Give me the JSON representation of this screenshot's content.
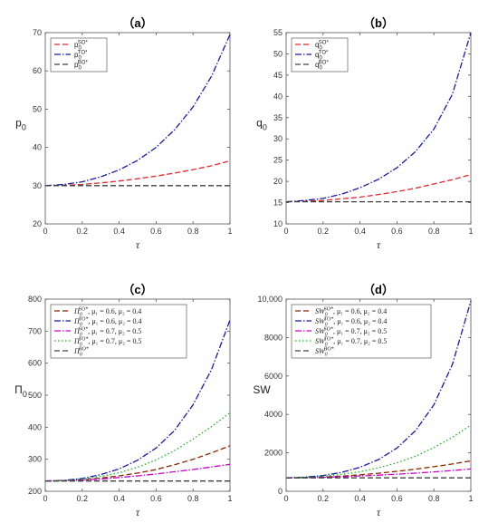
{
  "chart_data": [
    {
      "type": "line",
      "title": "（a）",
      "xlabel": "τ",
      "ylabel": "p",
      "ylabel_sub": "0",
      "xlim": [
        0,
        1
      ],
      "ylim": [
        20,
        70
      ],
      "xticks": [
        "0",
        "0.2",
        "0.4",
        "0.6",
        "0.8",
        "1"
      ],
      "yticks": [
        "20",
        "30",
        "40",
        "50",
        "60",
        "70"
      ],
      "legend_position": "top-left",
      "series": [
        {
          "name": "p",
          "sub": "0",
          "sup": "SO*",
          "color": "#e8242c",
          "dash": "6,3",
          "x": [
            0,
            0.1,
            0.2,
            0.3,
            0.4,
            0.5,
            0.6,
            0.7,
            0.8,
            0.9,
            1.0
          ],
          "y": [
            30,
            30.1,
            30.3,
            30.7,
            31.2,
            31.8,
            32.5,
            33.3,
            34.2,
            35.2,
            36.5
          ]
        },
        {
          "name": "p",
          "sub": "0",
          "sup": "TO*",
          "color": "#1a1aa8",
          "dash": "7,2,1.5,2",
          "x": [
            0,
            0.1,
            0.2,
            0.3,
            0.4,
            0.5,
            0.6,
            0.7,
            0.8,
            0.9,
            1.0
          ],
          "y": [
            30,
            30.3,
            31,
            32.3,
            34.1,
            36.6,
            40,
            44.6,
            50.6,
            58.6,
            69.5
          ]
        },
        {
          "name": "p",
          "sub": "0",
          "sup": "BO*",
          "color": "#404040",
          "dash": "6,3",
          "x": [
            0,
            1
          ],
          "y": [
            30,
            30
          ]
        }
      ]
    },
    {
      "type": "line",
      "title": "（b）",
      "xlabel": "τ",
      "ylabel": "q",
      "ylabel_sub": "0",
      "xlim": [
        0,
        1
      ],
      "ylim": [
        10,
        55
      ],
      "xticks": [
        "0",
        "0.2",
        "0.4",
        "0.6",
        "0.8",
        "1"
      ],
      "yticks": [
        "10",
        "15",
        "20",
        "25",
        "30",
        "35",
        "40",
        "45",
        "50",
        "55"
      ],
      "legend_position": "top-left",
      "series": [
        {
          "name": "q",
          "sub": "0",
          "sup": "SO*",
          "color": "#e8242c",
          "dash": "6,3",
          "x": [
            0,
            0.1,
            0.2,
            0.3,
            0.4,
            0.5,
            0.6,
            0.7,
            0.8,
            0.9,
            1.0
          ],
          "y": [
            15.2,
            15.3,
            15.5,
            15.9,
            16.3,
            16.9,
            17.6,
            18.4,
            19.4,
            20.4,
            21.6
          ]
        },
        {
          "name": "q",
          "sub": "0",
          "sup": "TO*",
          "color": "#1a1aa8",
          "dash": "7,2,1.5,2",
          "x": [
            0,
            0.1,
            0.2,
            0.3,
            0.4,
            0.5,
            0.6,
            0.7,
            0.8,
            0.9,
            1.0
          ],
          "y": [
            15.2,
            15.5,
            16,
            17,
            18.5,
            20.5,
            23.2,
            27,
            32.3,
            40.5,
            55
          ]
        },
        {
          "name": "q",
          "sub": "0",
          "sup": "BO*",
          "color": "#404040",
          "dash": "6,3",
          "x": [
            0,
            1
          ],
          "y": [
            15.2,
            15.2
          ]
        }
      ]
    },
    {
      "type": "line",
      "title": "（c）",
      "xlabel": "τ",
      "ylabel": "Π",
      "ylabel_sub": "0",
      "xlim": [
        0,
        1
      ],
      "ylim": [
        200,
        800
      ],
      "xticks": [
        "0",
        "0.2",
        "0.4",
        "0.6",
        "0.8",
        "1"
      ],
      "yticks": [
        "200",
        "300",
        "400",
        "500",
        "600",
        "700",
        "800"
      ],
      "legend_position": "top-left",
      "series": [
        {
          "name": "Π",
          "sub": "0",
          "sup": "SO*",
          "params": ", μ₁ = 0.6, μ₂ = 0.4",
          "color": "#8b2500",
          "dash": "6,3",
          "x": [
            0,
            0.1,
            0.2,
            0.3,
            0.4,
            0.5,
            0.6,
            0.7,
            0.8,
            0.9,
            1.0
          ],
          "y": [
            232,
            233,
            236,
            241,
            248,
            257,
            268,
            283,
            300,
            320,
            342
          ]
        },
        {
          "name": "Π",
          "sub": "0",
          "sup": "TO*",
          "params": ", μ₁ = 0.6, μ₂ = 0.4",
          "color": "#1a1aa8",
          "dash": "7,2,1.5,2",
          "x": [
            0,
            0.1,
            0.2,
            0.3,
            0.4,
            0.5,
            0.6,
            0.7,
            0.8,
            0.9,
            1.0
          ],
          "y": [
            232,
            234,
            240,
            252,
            270,
            297,
            335,
            390,
            470,
            580,
            735
          ]
        },
        {
          "name": "Π",
          "sub": "0",
          "sup": "SO*",
          "params": ", μ₁ = 0.7, μ₂ = 0.5",
          "color": "#cc00cc",
          "dash": "7,2,1.5,2",
          "x": [
            0,
            0.1,
            0.2,
            0.3,
            0.4,
            0.5,
            0.6,
            0.7,
            0.8,
            0.9,
            1.0
          ],
          "y": [
            232,
            233,
            235,
            238,
            243,
            248,
            254,
            261,
            268,
            276,
            284
          ]
        },
        {
          "name": "Π",
          "sub": "0",
          "sup": "TO*",
          "params": ", μ₁ = 0.7, μ₂ = 0.5",
          "color": "#22b022",
          "dash": "1.5,2.5",
          "x": [
            0,
            0.1,
            0.2,
            0.3,
            0.4,
            0.5,
            0.6,
            0.7,
            0.8,
            0.9,
            1.0
          ],
          "y": [
            232,
            233,
            238,
            246,
            258,
            275,
            298,
            327,
            363,
            402,
            445
          ]
        },
        {
          "name": "Π",
          "sub": "0",
          "sup": "BO*",
          "params": "",
          "color": "#404040",
          "dash": "6,3",
          "x": [
            0,
            1
          ],
          "y": [
            232,
            232
          ]
        }
      ]
    },
    {
      "type": "line",
      "title": "（d）",
      "xlabel": "τ",
      "ylabel": "SW",
      "ylabel_sub": "",
      "xlim": [
        0,
        1
      ],
      "ylim": [
        0,
        10000
      ],
      "xticks": [
        "0",
        "0.2",
        "0.4",
        "0.6",
        "0.8",
        "1"
      ],
      "yticks": [
        "0",
        "2000",
        "4000",
        "6000",
        "8000",
        "10,000"
      ],
      "legend_position": "top-left",
      "series": [
        {
          "name": "SW",
          "sub": "0",
          "sup": "SO*",
          "params": ", μ₁ = 0.6, μ₂ = 0.4",
          "color": "#8b2500",
          "dash": "6,3",
          "x": [
            0,
            0.1,
            0.2,
            0.3,
            0.4,
            0.5,
            0.6,
            0.7,
            0.8,
            0.9,
            1.0
          ],
          "y": [
            700,
            710,
            740,
            790,
            860,
            940,
            1040,
            1150,
            1280,
            1420,
            1580
          ]
        },
        {
          "name": "SW",
          "sub": "0",
          "sup": "TO*",
          "params": ", μ₁ = 0.6, μ₂ = 0.4",
          "color": "#1a1aa8",
          "dash": "7,2,1.5,2",
          "x": [
            0,
            0.1,
            0.2,
            0.3,
            0.4,
            0.5,
            0.6,
            0.7,
            0.8,
            0.9,
            1.0
          ],
          "y": [
            700,
            730,
            820,
            980,
            1250,
            1650,
            2250,
            3150,
            4500,
            6600,
            9900
          ]
        },
        {
          "name": "SW",
          "sub": "0",
          "sup": "SO*",
          "params": ", μ₁ = 0.7, μ₂ = 0.5",
          "color": "#cc00cc",
          "dash": "7,2,1.5,2",
          "x": [
            0,
            0.1,
            0.2,
            0.3,
            0.4,
            0.5,
            0.6,
            0.7,
            0.8,
            0.9,
            1.0
          ],
          "y": [
            700,
            705,
            725,
            755,
            795,
            840,
            890,
            945,
            1010,
            1080,
            1160
          ]
        },
        {
          "name": "SW",
          "sub": "0",
          "sup": "TO*",
          "params": ", μ₁ = 0.7, μ₂ = 0.5",
          "color": "#22b022",
          "dash": "1.5,2.5",
          "x": [
            0,
            0.1,
            0.2,
            0.3,
            0.4,
            0.5,
            0.6,
            0.7,
            0.8,
            0.9,
            1.0
          ],
          "y": [
            700,
            720,
            780,
            880,
            1020,
            1220,
            1480,
            1820,
            2280,
            2800,
            3450
          ]
        },
        {
          "name": "SW",
          "sub": "0",
          "sup": "BO*",
          "params": "",
          "color": "#404040",
          "dash": "6,3",
          "x": [
            0,
            1
          ],
          "y": [
            700,
            700
          ]
        }
      ]
    }
  ]
}
